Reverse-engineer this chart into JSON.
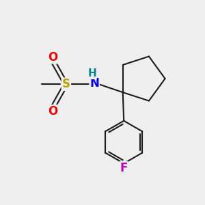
{
  "background_color": "#efefef",
  "bond_color": "#1a1a1a",
  "S_color": "#b8a000",
  "N_color": "#0000ee",
  "O_color": "#ee0000",
  "F_color": "#bb00bb",
  "H_color": "#008888",
  "font_size_atom": 12,
  "font_size_H": 11,
  "line_width": 1.5,
  "figsize": [
    3.0,
    3.0
  ],
  "dpi": 100,
  "xlim": [
    0,
    10
  ],
  "ylim": [
    0,
    10
  ]
}
